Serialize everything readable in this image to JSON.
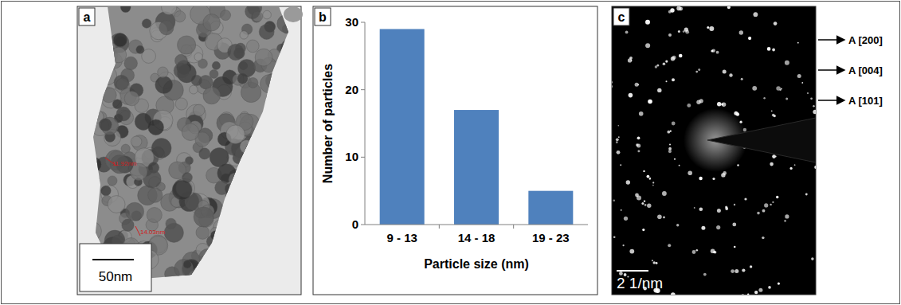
{
  "panel_a": {
    "panel_label": "a",
    "scale_bar": "50nm",
    "measurements": [
      "11.92nm",
      "14.03nm"
    ]
  },
  "chart_data": {
    "type": "bar",
    "panel_label": "b",
    "categories": [
      "9 - 13",
      "14 - 18",
      "19 - 23"
    ],
    "values": [
      29,
      17,
      5
    ],
    "color": "#4f81bd",
    "x_label": "Particle size (nm)",
    "y_label": "Number of particles",
    "ylim": [
      0,
      30
    ],
    "yticks": [
      0,
      10,
      20,
      30
    ],
    "grid": false
  },
  "panel_c": {
    "panel_label": "c",
    "scale_bar": "2 1/nm",
    "rings": [
      "A [200]",
      "A [004]",
      "A [101]"
    ]
  }
}
